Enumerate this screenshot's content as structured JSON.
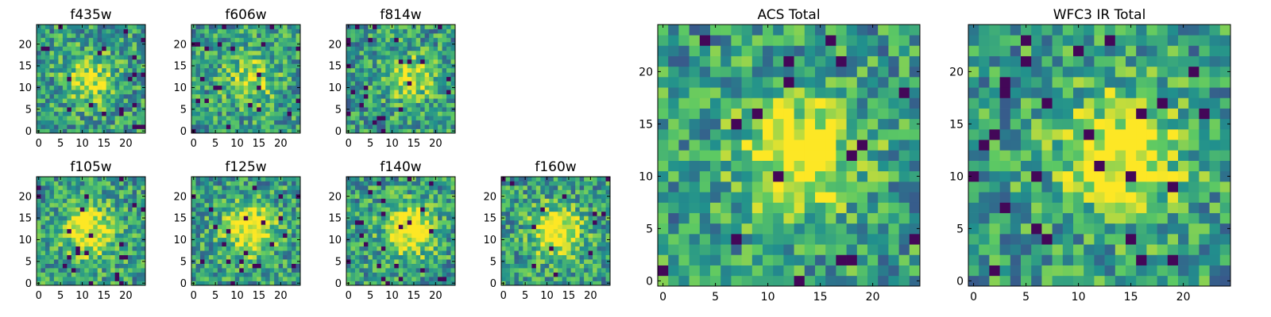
{
  "chart_data": [
    {
      "type": "heatmap",
      "title": "f435w",
      "xticks": [
        "0",
        "5",
        "10",
        "15",
        "20"
      ],
      "yticks": [
        "0",
        "5",
        "10",
        "15",
        "20"
      ],
      "grid_size": 25,
      "colormap": "viridis",
      "grid": false
    },
    {
      "type": "heatmap",
      "title": "f606w",
      "xticks": [
        "0",
        "5",
        "10",
        "15",
        "20"
      ],
      "yticks": [
        "0",
        "5",
        "10",
        "15",
        "20"
      ],
      "grid_size": 25,
      "colormap": "viridis",
      "grid": false
    },
    {
      "type": "heatmap",
      "title": "f814w",
      "xticks": [
        "0",
        "5",
        "10",
        "15",
        "20"
      ],
      "yticks": [
        "0",
        "5",
        "10",
        "15",
        "20"
      ],
      "grid_size": 25,
      "colormap": "viridis",
      "grid": false
    },
    {
      "type": "heatmap",
      "title": "f105w",
      "xticks": [
        "0",
        "5",
        "10",
        "15",
        "20"
      ],
      "yticks": [
        "0",
        "5",
        "10",
        "15",
        "20"
      ],
      "grid_size": 25,
      "colormap": "viridis",
      "grid": false
    },
    {
      "type": "heatmap",
      "title": "f125w",
      "xticks": [
        "0",
        "5",
        "10",
        "15",
        "20"
      ],
      "yticks": [
        "0",
        "5",
        "10",
        "15",
        "20"
      ],
      "grid_size": 25,
      "colormap": "viridis",
      "grid": false
    },
    {
      "type": "heatmap",
      "title": "f140w",
      "xticks": [
        "0",
        "5",
        "10",
        "15",
        "20"
      ],
      "yticks": [
        "0",
        "5",
        "10",
        "15",
        "20"
      ],
      "grid_size": 25,
      "colormap": "viridis",
      "grid": false
    },
    {
      "type": "heatmap",
      "title": "f160w",
      "xticks": [
        "0",
        "5",
        "10",
        "15",
        "20"
      ],
      "yticks": [
        "0",
        "5",
        "10",
        "15",
        "20"
      ],
      "grid_size": 25,
      "colormap": "viridis",
      "grid": false
    },
    {
      "type": "heatmap",
      "title": "ACS Total",
      "xticks": [
        "0",
        "5",
        "10",
        "15",
        "20"
      ],
      "yticks": [
        "0",
        "5",
        "10",
        "15",
        "20"
      ],
      "grid_size": 25,
      "colormap": "viridis",
      "grid": false
    },
    {
      "type": "heatmap",
      "title": "WFC3 IR Total",
      "xticks": [
        "0",
        "5",
        "10",
        "15",
        "20"
      ],
      "yticks": [
        "0",
        "5",
        "10",
        "15",
        "20"
      ],
      "grid_size": 25,
      "colormap": "viridis",
      "grid": false
    }
  ],
  "colors": {
    "viridis": [
      "#440154",
      "#3b528b",
      "#21908d",
      "#5dc963",
      "#fde725"
    ]
  }
}
